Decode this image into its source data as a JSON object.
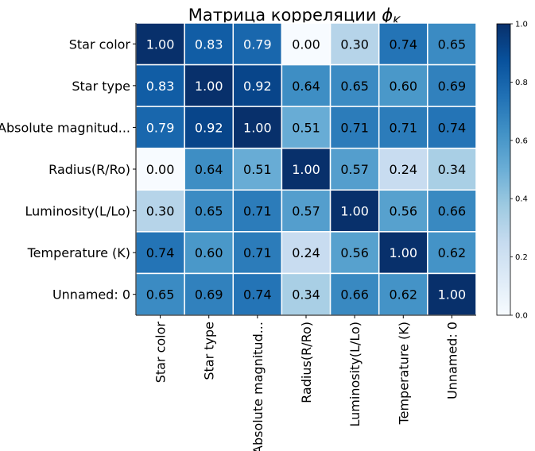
{
  "chart_data": {
    "type": "heatmap",
    "title_main": "Матрица корреляции ",
    "title_symbol": "ϕ",
    "title_subscript": "K",
    "x_labels": [
      "Star color",
      "Star type",
      "Absolute magnitud...",
      "Radius(R/Ro)",
      "Luminosity(L/Lo)",
      "Temperature (K)",
      "Unnamed: 0"
    ],
    "y_labels": [
      "Star color",
      "Star type",
      "Absolute magnitud...",
      "Radius(R/Ro)",
      "Luminosity(L/Lo)",
      "Temperature (K)",
      "Unnamed: 0"
    ],
    "values": [
      [
        1.0,
        0.83,
        0.79,
        0.0,
        0.3,
        0.74,
        0.65
      ],
      [
        0.83,
        1.0,
        0.92,
        0.64,
        0.65,
        0.6,
        0.69
      ],
      [
        0.79,
        0.92,
        1.0,
        0.51,
        0.71,
        0.71,
        0.74
      ],
      [
        0.0,
        0.64,
        0.51,
        1.0,
        0.57,
        0.24,
        0.34
      ],
      [
        0.3,
        0.65,
        0.71,
        0.57,
        1.0,
        0.56,
        0.66
      ],
      [
        0.74,
        0.6,
        0.71,
        0.24,
        0.56,
        1.0,
        0.62
      ],
      [
        0.65,
        0.69,
        0.74,
        0.34,
        0.66,
        0.62,
        1.0
      ]
    ],
    "cell_labels": [
      [
        "1.00",
        "0.83",
        "0.79",
        "0.00",
        "0.30",
        "0.74",
        "0.65"
      ],
      [
        "0.83",
        "1.00",
        "0.92",
        "0.64",
        "0.65",
        "0.60",
        "0.69"
      ],
      [
        "0.79",
        "0.92",
        "1.00",
        "0.51",
        "0.71",
        "0.71",
        "0.74"
      ],
      [
        "0.00",
        "0.64",
        "0.51",
        "1.00",
        "0.57",
        "0.24",
        "0.34"
      ],
      [
        "0.30",
        "0.65",
        "0.71",
        "0.57",
        "1.00",
        "0.56",
        "0.66"
      ],
      [
        "0.74",
        "0.60",
        "0.71",
        "0.24",
        "0.56",
        "1.00",
        "0.62"
      ],
      [
        "0.65",
        "0.69",
        "0.74",
        "0.34",
        "0.66",
        "0.62",
        "1.00"
      ]
    ],
    "colormap": "Blues",
    "colormap_stops": [
      "#f7fbff",
      "#deebf7",
      "#c6dbef",
      "#9ecae1",
      "#6baed6",
      "#4292c6",
      "#2171b5",
      "#08519c",
      "#08306b"
    ],
    "zlim": [
      0,
      1
    ],
    "colorbar_ticks": [
      0.0,
      0.2,
      0.4,
      0.6,
      0.8,
      1.0
    ],
    "colorbar_tick_labels": [
      "0.0",
      "0.2",
      "0.4",
      "0.6",
      "0.8",
      "1.0"
    ],
    "grid_line_color": "#ffffff",
    "label_color_dark": "#000000",
    "label_color_light": "#ffffff",
    "label_contrast_threshold": 0.75
  }
}
